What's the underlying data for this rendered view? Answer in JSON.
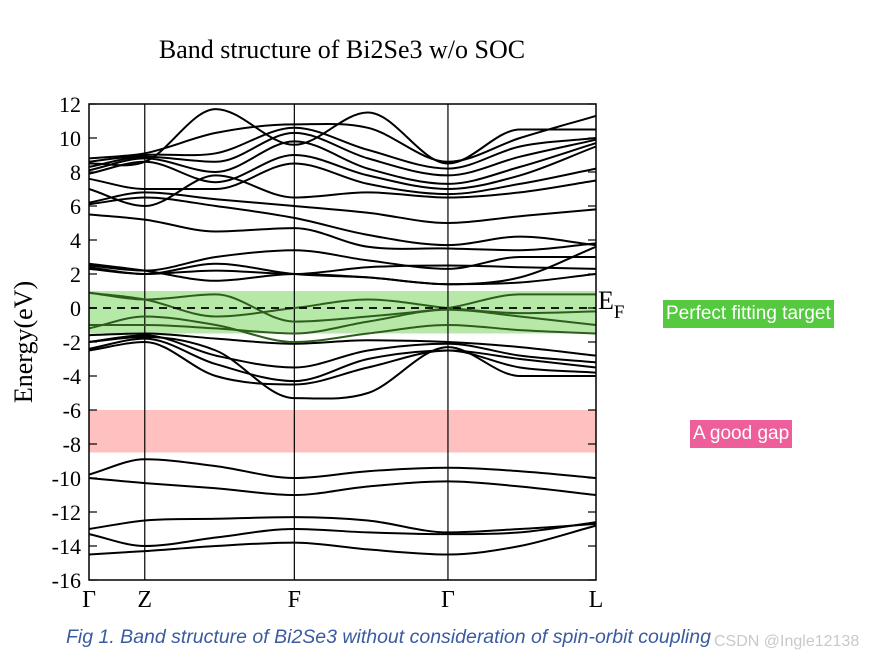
{
  "chart_data": {
    "type": "line",
    "title": "Band structure of Bi2Se3 w/o SOC",
    "ylabel": "Energy(eV)",
    "xlabel": "",
    "ylim": [
      -16,
      12
    ],
    "yticks": [
      12,
      10,
      8,
      6,
      4,
      2,
      0,
      -2,
      -4,
      -6,
      -8,
      -10,
      -12,
      -14,
      -16
    ],
    "kpoints": [
      {
        "label": "Γ",
        "pos": 0.0
      },
      {
        "label": "Z",
        "pos": 0.11
      },
      {
        "label": "F",
        "pos": 0.405
      },
      {
        "label": "Γ",
        "pos": 0.708
      },
      {
        "label": "L",
        "pos": 1.0
      }
    ],
    "fermi_label_main": "E",
    "fermi_label_sub": "F",
    "fermi_level": 0,
    "x": [
      0.0,
      0.11,
      0.25,
      0.405,
      0.55,
      0.708,
      0.85,
      1.0
    ],
    "bands": [
      {
        "name": "band-01",
        "values": [
          -14.5,
          -14.3,
          -14.0,
          -13.8,
          -14.2,
          -14.5,
          -14.0,
          -12.8
        ]
      },
      {
        "name": "band-02",
        "values": [
          -13.3,
          -14.0,
          -13.5,
          -13.0,
          -13.2,
          -13.3,
          -13.2,
          -12.6
        ]
      },
      {
        "name": "band-03",
        "values": [
          -13.0,
          -12.5,
          -12.4,
          -12.3,
          -12.5,
          -13.2,
          -13.0,
          -12.7
        ]
      },
      {
        "name": "band-04",
        "values": [
          -10.0,
          -10.3,
          -10.6,
          -11.0,
          -10.5,
          -10.2,
          -10.5,
          -11.0
        ]
      },
      {
        "name": "band-05",
        "values": [
          -9.8,
          -8.9,
          -9.3,
          -10.0,
          -9.6,
          -9.4,
          -9.6,
          -10.0
        ]
      },
      {
        "name": "band-06",
        "values": [
          -2.5,
          -2.0,
          -4.0,
          -4.5,
          -3.5,
          -2.5,
          -3.5,
          -3.8
        ]
      },
      {
        "name": "band-07",
        "values": [
          -2.4,
          -1.8,
          -3.3,
          -4.3,
          -3.0,
          -2.5,
          -3.0,
          -3.5
        ]
      },
      {
        "name": "band-08",
        "values": [
          -2.0,
          -1.6,
          -2.8,
          -3.5,
          -2.5,
          -2.1,
          -2.8,
          -3.2
        ]
      },
      {
        "name": "band-09",
        "values": [
          -2.0,
          -1.7,
          -2.5,
          -5.3,
          -5.0,
          -2.3,
          -4.0,
          -4.0
        ]
      },
      {
        "name": "band-10",
        "values": [
          -1.6,
          -1.5,
          -1.8,
          -2.1,
          -1.9,
          -2.0,
          -2.3,
          -2.8
        ]
      },
      {
        "name": "band-11",
        "values": [
          -1.2,
          -0.5,
          -1.0,
          -2.0,
          -1.5,
          -1.0,
          -1.3,
          -1.5
        ]
      },
      {
        "name": "band-12",
        "values": [
          -1.0,
          -1.0,
          -1.2,
          -1.5,
          -0.8,
          -0.1,
          -0.5,
          -1.0
        ]
      },
      {
        "name": "band-13",
        "values": [
          0.9,
          0.5,
          -0.5,
          0.0,
          0.5,
          0.0,
          -0.3,
          -0.2
        ]
      },
      {
        "name": "band-14",
        "values": [
          0.9,
          0.5,
          0.8,
          -0.8,
          -0.5,
          0.0,
          0.8,
          0.8
        ]
      },
      {
        "name": "band-15",
        "values": [
          2.4,
          2.0,
          2.2,
          2.0,
          2.4,
          2.5,
          2.4,
          2.3
        ]
      },
      {
        "name": "band-16",
        "values": [
          2.6,
          2.2,
          1.6,
          2.0,
          1.8,
          1.4,
          1.5,
          2.0
        ]
      },
      {
        "name": "band-17",
        "values": [
          2.3,
          2.0,
          2.6,
          2.0,
          1.8,
          1.4,
          1.8,
          3.6
        ]
      },
      {
        "name": "band-18",
        "values": [
          2.5,
          2.2,
          3.0,
          3.4,
          2.8,
          2.3,
          3.0,
          3.0
        ]
      },
      {
        "name": "band-19",
        "values": [
          5.5,
          5.2,
          4.5,
          4.7,
          3.6,
          3.5,
          3.4,
          3.8
        ]
      },
      {
        "name": "band-20",
        "values": [
          6.1,
          6.5,
          6.0,
          5.3,
          4.3,
          3.7,
          4.2,
          3.7
        ]
      },
      {
        "name": "band-21",
        "values": [
          6.2,
          6.8,
          6.4,
          6.0,
          5.6,
          5.0,
          5.4,
          5.8
        ]
      },
      {
        "name": "band-22",
        "values": [
          7.0,
          6.0,
          7.8,
          6.5,
          6.8,
          6.5,
          6.8,
          7.5
        ]
      },
      {
        "name": "band-23",
        "values": [
          7.6,
          7.0,
          7.0,
          8.5,
          7.3,
          6.7,
          7.3,
          8.2
        ]
      },
      {
        "name": "band-24",
        "values": [
          7.9,
          8.6,
          7.4,
          9.0,
          7.8,
          7.0,
          7.8,
          9.5
        ]
      },
      {
        "name": "band-25",
        "values": [
          8.1,
          8.8,
          8.0,
          9.8,
          8.2,
          7.3,
          8.3,
          9.7
        ]
      },
      {
        "name": "band-26",
        "values": [
          8.3,
          8.9,
          8.6,
          10.3,
          8.8,
          7.8,
          8.9,
          9.9
        ]
      },
      {
        "name": "band-27",
        "values": [
          8.6,
          9.0,
          9.1,
          10.6,
          9.3,
          8.2,
          9.5,
          10.0
        ]
      },
      {
        "name": "band-28",
        "values": [
          8.8,
          9.1,
          10.3,
          10.8,
          10.6,
          8.6,
          10.0,
          11.3
        ]
      },
      {
        "name": "band-29",
        "values": [
          8.5,
          8.6,
          11.7,
          9.6,
          11.5,
          8.5,
          10.5,
          10.5
        ]
      }
    ],
    "highlight_bands": [
      "band-11",
      "band-12",
      "band-13",
      "band-14"
    ],
    "regions": [
      {
        "name": "fitting-window",
        "y0": -1.5,
        "y1": 1.0,
        "color": "#b6e8a8"
      },
      {
        "name": "gap-window",
        "y0": -8.5,
        "y1": -6.0,
        "color": "#ffc0c0"
      }
    ]
  },
  "annotations": {
    "fitting_target": "Perfect fitting target",
    "good_gap": "A good gap"
  },
  "caption": "Fig 1. Band structure of Bi2Se3 without consideration of spin-orbit coupling",
  "watermark": "CSDN @Ingle12138",
  "colors": {
    "band": "#000000",
    "highlight_band": "#2e5e1e",
    "label_green_bg": "#55c93f",
    "label_pink_bg": "#ee5e9a",
    "caption": "#3a5ba0"
  }
}
